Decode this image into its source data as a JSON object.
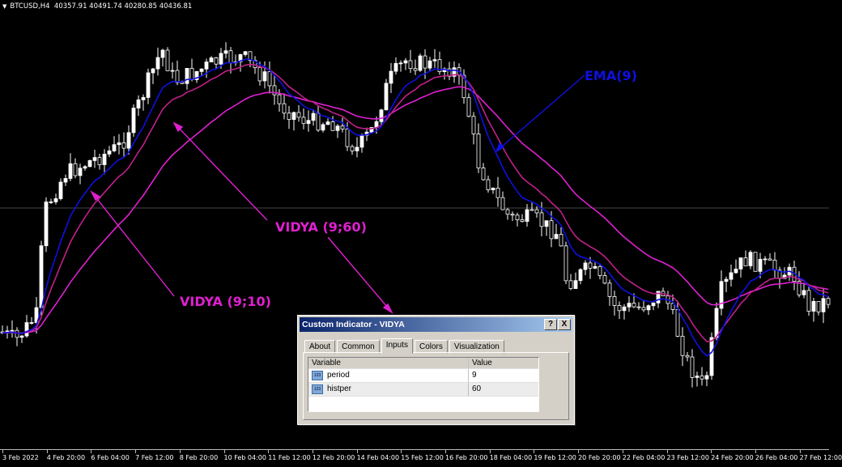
{
  "header": {
    "symbol": "BTCUSD,H4",
    "ohlc": "40357.91 40491.74 40280.85 40436.81"
  },
  "time_axis": [
    "3 Feb 2022",
    "4 Feb 20:00",
    "6 Feb 04:00",
    "7 Feb 12:00",
    "8 Feb 20:00",
    "10 Feb 04:00",
    "11 Feb 12:00",
    "12 Feb 20:00",
    "14 Feb 04:00",
    "15 Feb 12:00",
    "16 Feb 20:00",
    "18 Feb 04:00",
    "19 Feb 12:00",
    "20 Feb 20:00",
    "22 Feb 04:00",
    "23 Feb 12:00",
    "24 Feb 20:00",
    "26 Feb 04:00",
    "27 Feb 12:00"
  ],
  "annotations": {
    "ema": "EMA(9)",
    "vidya60": "VIDYA (9;60)",
    "vidya10": "VIDYA (9;10)"
  },
  "colors": {
    "ema": "#1010e0",
    "vidya": "#e020d0",
    "vidya_dark": "#c0208a",
    "candle": "#ffffff",
    "background": "#000000"
  },
  "dialog": {
    "title": "Custom Indicator - VIDYA",
    "help": "?",
    "close": "X",
    "tabs": [
      "About",
      "Common",
      "Inputs",
      "Colors",
      "Visualization"
    ],
    "active_tab": "Inputs",
    "columns": [
      "Variable",
      "Value"
    ],
    "rows": [
      {
        "icon": "123",
        "variable": "period",
        "value": "9"
      },
      {
        "icon": "123",
        "variable": "histper",
        "value": "60"
      }
    ]
  }
}
